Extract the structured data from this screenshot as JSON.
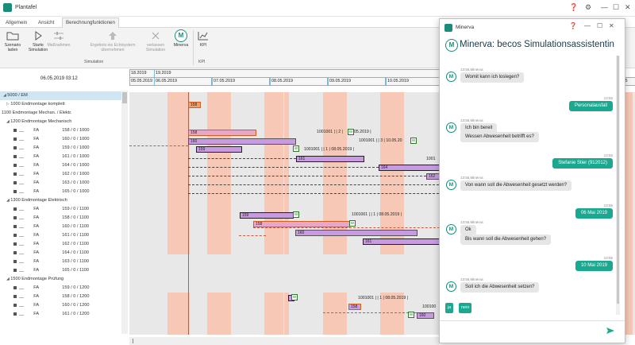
{
  "window": {
    "title": "Plantafel"
  },
  "tabs": [
    "Allgemein",
    "Ansicht",
    "Berechnungfunktionen"
  ],
  "ribbon": {
    "buttons": [
      {
        "label": "Szenario laden"
      },
      {
        "label": "Starte Simulation"
      },
      {
        "label": "Maßnahmen"
      },
      {
        "label": "Ergebnis ins Echtsystem übernehmen"
      },
      {
        "label": "verlassen Simulation"
      },
      {
        "label": "Minerva"
      },
      {
        "label": "KPI"
      }
    ],
    "group_simulation": "Simulation",
    "group_kpi": "KPI"
  },
  "left": {
    "datetime": "06.05.2019 03:12",
    "rows": [
      {
        "text": "5000 / EM"
      },
      {
        "text": "1000 Endmontage komplett"
      },
      {
        "text": "1100 Endmontage Mechan. / Elektr."
      },
      {
        "text": "1200 Endmontage Mechanisch"
      },
      {
        "type": "FA",
        "order": "158 / 0 / 1000"
      },
      {
        "type": "FA",
        "order": "160 / 0 / 1000"
      },
      {
        "type": "FA",
        "order": "159 / 0 / 1000"
      },
      {
        "type": "FA",
        "order": "161 / 0 / 1000"
      },
      {
        "type": "FA",
        "order": "164 / 0 / 1000"
      },
      {
        "type": "FA",
        "order": "162 / 0 / 1000"
      },
      {
        "type": "FA",
        "order": "163 / 0 / 1000"
      },
      {
        "type": "FA",
        "order": "165 / 0 / 1000"
      },
      {
        "text": "1300 Endmontage Elektrisch"
      },
      {
        "type": "FA",
        "order": "159 / 0 / 1100"
      },
      {
        "type": "FA",
        "order": "158 / 0 / 1100"
      },
      {
        "type": "FA",
        "order": "160 / 0 / 1100"
      },
      {
        "type": "FA",
        "order": "161 / 0 / 1100"
      },
      {
        "type": "FA",
        "order": "162 / 0 / 1100"
      },
      {
        "type": "FA",
        "order": "164 / 0 / 1100"
      },
      {
        "type": "FA",
        "order": "163 / 0 / 1100"
      },
      {
        "type": "FA",
        "order": "165 / 0 / 1100"
      },
      {
        "text": "1500 Endmontage Prüfung"
      },
      {
        "type": "FA",
        "order": "159 / 0 / 1200"
      },
      {
        "type": "FA",
        "order": "158 / 0 / 1200"
      },
      {
        "type": "FA",
        "order": "160 / 0 / 1200"
      },
      {
        "type": "FA",
        "order": "161 / 0 / 1200"
      }
    ]
  },
  "gantt": {
    "top_dates": [
      "18.2019",
      "19.2019"
    ],
    "dates": [
      "05.05.2019",
      "06.05.2019",
      "07.05.2019",
      "08.05.2019",
      "09.05.2019",
      "10.05.2019",
      "4.05"
    ],
    "bars": [
      "158",
      "158",
      "160",
      "159",
      "161",
      "164",
      "162",
      "159",
      "158",
      "160",
      "161",
      "159",
      "158",
      "160"
    ],
    "labels": [
      "1001001 |  | 2 |",
      "05.2019 |",
      "1001001 |  | 3 | 10.05.20",
      "1001001 |  | 1 | 08.05.2019 |",
      "1001",
      "1001001 |  | 1 | 08.05.2019 |",
      "1001001 |  | 1 | 08.05.2019 |",
      "100100"
    ],
    "milestone": "W"
  },
  "chat": {
    "title": "Minerva",
    "heading": "Minerva: becos Simulationsassistentin",
    "messages": [
      {
        "from": "bot",
        "meta": "13:55,Minerva",
        "text": "Womit kann ich loslegen?"
      },
      {
        "from": "user",
        "meta": "13:55",
        "text": "Personalausfall"
      },
      {
        "from": "bot",
        "meta": "13:55,Minerva",
        "text": "Ich bin bereit"
      },
      {
        "from": "bot",
        "meta": "",
        "text": "Wessen Abwesenheit betrifft es?"
      },
      {
        "from": "user",
        "meta": "13:55",
        "text": "Stefanie Stier (912012)"
      },
      {
        "from": "bot",
        "meta": "13:55,Minerva",
        "text": "Von wann soll die Abwesenheit gesetzt werden?"
      },
      {
        "from": "user",
        "meta": "13:55",
        "text": "06 Mai 2019"
      },
      {
        "from": "bot",
        "meta": "13:55,Minerva",
        "text": "Ok"
      },
      {
        "from": "bot",
        "meta": "",
        "text": "Bis wann soll die Abwesenheit gehen?"
      },
      {
        "from": "user",
        "meta": "13:55",
        "text": "10 Mai 2019"
      },
      {
        "from": "bot",
        "meta": "13:55,Minerva",
        "text": "Soll ich die Abwesenheit setzen?"
      }
    ],
    "quick_replies": [
      "ja",
      "nein"
    ],
    "input_placeholder": ""
  },
  "colors": {
    "accent": "#1aa890",
    "bar": "#c89ae0",
    "shift": "#f8c8b6"
  }
}
